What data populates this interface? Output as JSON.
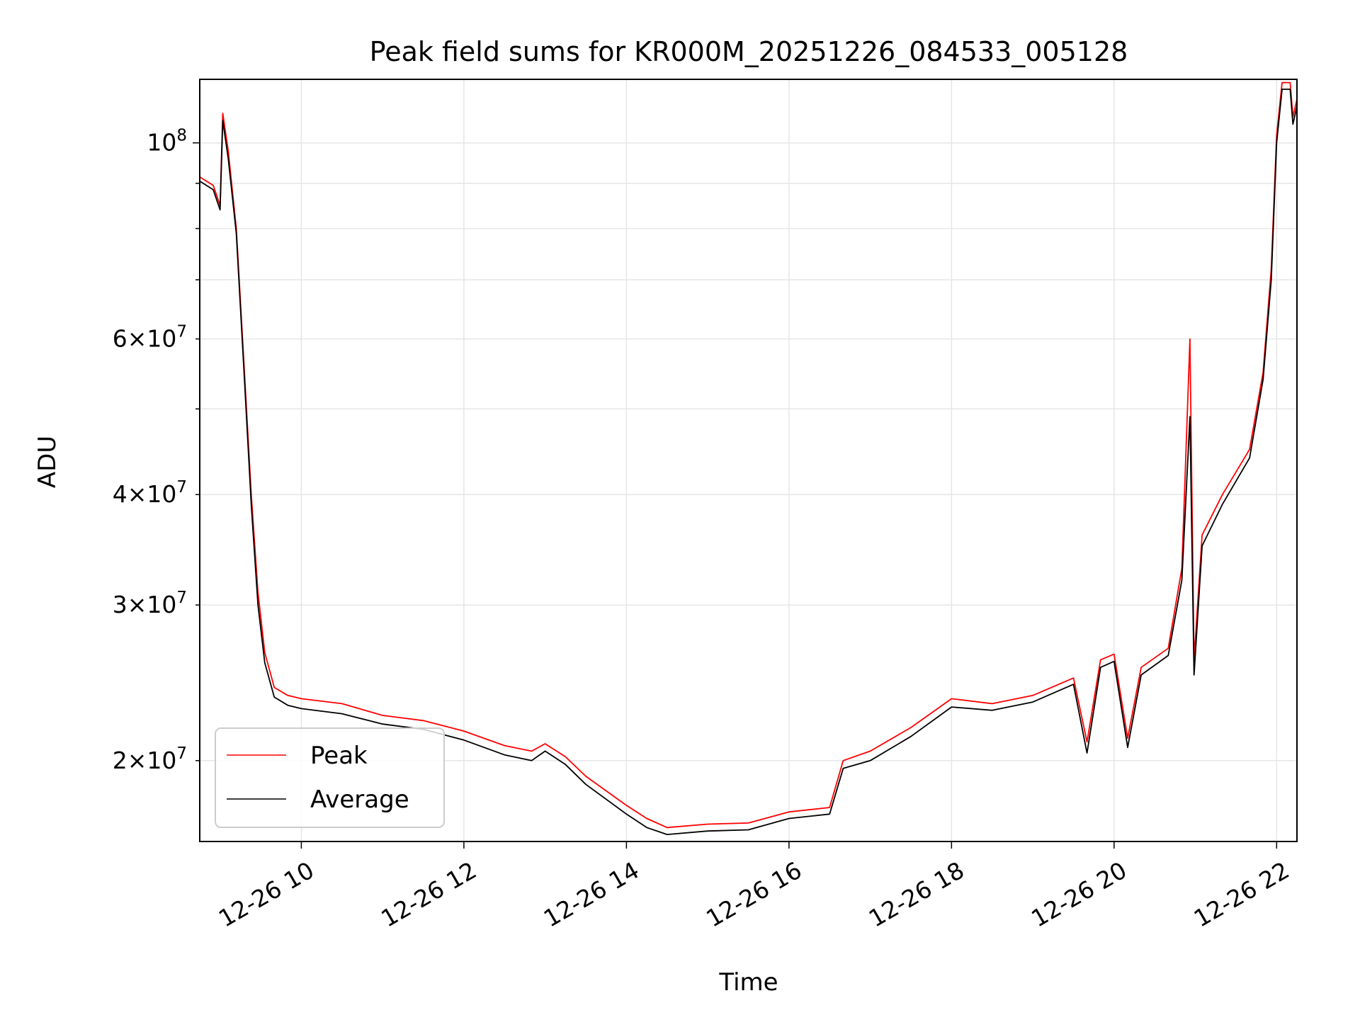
{
  "chart_data": {
    "type": "line",
    "title": "Peak field sums for KR000M_20251226_084533_005128",
    "xlabel": "Time",
    "ylabel": "ADU",
    "yscale": "log",
    "grid": true,
    "legend_placement": "lower-left",
    "xlim": [
      "12-26 08:45",
      "12-26 22:15"
    ],
    "ylim": [
      16200000,
      118000000
    ],
    "x_ticks": [
      {
        "t": "12-26 10:00",
        "label": "12-26 10"
      },
      {
        "t": "12-26 12:00",
        "label": "12-26 12"
      },
      {
        "t": "12-26 14:00",
        "label": "12-26 14"
      },
      {
        "t": "12-26 16:00",
        "label": "12-26 16"
      },
      {
        "t": "12-26 18:00",
        "label": "12-26 18"
      },
      {
        "t": "12-26 20:00",
        "label": "12-26 20"
      },
      {
        "t": "12-26 22:00",
        "label": "12-26 22"
      }
    ],
    "y_major_ticks": [
      {
        "value": 100000000,
        "mantissa": "",
        "base": "10",
        "exp": "8"
      }
    ],
    "y_minor_ticks": [
      {
        "value": 20000000,
        "mantissa": "2",
        "base": "10",
        "exp": "7"
      },
      {
        "value": 30000000,
        "mantissa": "3",
        "base": "10",
        "exp": "7"
      },
      {
        "value": 40000000,
        "mantissa": "4",
        "base": "10",
        "exp": "7"
      },
      {
        "value": 50000000,
        "mantissa": "",
        "base": "",
        "exp": ""
      },
      {
        "value": 60000000,
        "mantissa": "6",
        "base": "10",
        "exp": "7"
      },
      {
        "value": 70000000,
        "mantissa": "",
        "base": "",
        "exp": ""
      },
      {
        "value": 80000000,
        "mantissa": "",
        "base": "",
        "exp": ""
      },
      {
        "value": 90000000,
        "mantissa": "",
        "base": "",
        "exp": ""
      }
    ],
    "series": [
      {
        "name": "Peak",
        "color": "#ff0000",
        "points": [
          [
            "12-26 08:45",
            91500000
          ],
          [
            "12-26 08:55",
            89500000
          ],
          [
            "12-26 09:00",
            85000000
          ],
          [
            "12-26 09:02",
            108000000
          ],
          [
            "12-26 09:06",
            98000000
          ],
          [
            "12-26 09:12",
            80000000
          ],
          [
            "12-26 09:18",
            55000000
          ],
          [
            "12-26 09:23",
            40000000
          ],
          [
            "12-26 09:28",
            31000000
          ],
          [
            "12-26 09:33",
            26500000
          ],
          [
            "12-26 09:40",
            24200000
          ],
          [
            "12-26 09:50",
            23700000
          ],
          [
            "12-26 10:00",
            23500000
          ],
          [
            "12-26 10:30",
            23200000
          ],
          [
            "12-26 11:00",
            22500000
          ],
          [
            "12-26 11:30",
            22200000
          ],
          [
            "12-26 12:00",
            21600000
          ],
          [
            "12-26 12:30",
            20800000
          ],
          [
            "12-26 12:50",
            20500000
          ],
          [
            "12-26 13:00",
            20900000
          ],
          [
            "12-26 13:15",
            20200000
          ],
          [
            "12-26 13:30",
            19200000
          ],
          [
            "12-26 14:00",
            17800000
          ],
          [
            "12-26 14:15",
            17200000
          ],
          [
            "12-26 14:30",
            16800000
          ],
          [
            "12-26 15:00",
            16950000
          ],
          [
            "12-26 15:30",
            17000000
          ],
          [
            "12-26 16:00",
            17500000
          ],
          [
            "12-26 16:30",
            17700000
          ],
          [
            "12-26 16:40",
            20000000
          ],
          [
            "12-26 17:00",
            20500000
          ],
          [
            "12-26 17:30",
            21800000
          ],
          [
            "12-26 18:00",
            23500000
          ],
          [
            "12-26 18:30",
            23200000
          ],
          [
            "12-26 19:00",
            23700000
          ],
          [
            "12-26 19:30",
            24800000
          ],
          [
            "12-26 19:40",
            21000000
          ],
          [
            "12-26 19:50",
            26000000
          ],
          [
            "12-26 20:00",
            26400000
          ],
          [
            "12-26 20:10",
            21200000
          ],
          [
            "12-26 20:20",
            25500000
          ],
          [
            "12-26 20:40",
            26800000
          ],
          [
            "12-26 20:50",
            33000000
          ],
          [
            "12-26 20:56",
            60000000
          ],
          [
            "12-26 20:59",
            26000000
          ],
          [
            "12-26 21:05",
            36000000
          ],
          [
            "12-26 21:20",
            40000000
          ],
          [
            "12-26 21:40",
            45000000
          ],
          [
            "12-26 21:50",
            55000000
          ],
          [
            "12-26 21:56",
            72000000
          ],
          [
            "12-26 22:00",
            102000000
          ],
          [
            "12-26 22:04",
            117000000
          ],
          [
            "12-26 22:10",
            117000000
          ],
          [
            "12-26 22:12",
            107000000
          ],
          [
            "12-26 22:15",
            112000000
          ]
        ]
      },
      {
        "name": "Average",
        "color": "#000000",
        "points": [
          [
            "12-26 08:45",
            90500000
          ],
          [
            "12-26 08:55",
            88500000
          ],
          [
            "12-26 09:00",
            84000000
          ],
          [
            "12-26 09:02",
            106000000
          ],
          [
            "12-26 09:06",
            96000000
          ],
          [
            "12-26 09:12",
            79000000
          ],
          [
            "12-26 09:18",
            54000000
          ],
          [
            "12-26 09:23",
            39000000
          ],
          [
            "12-26 09:28",
            30000000
          ],
          [
            "12-26 09:33",
            25800000
          ],
          [
            "12-26 09:40",
            23600000
          ],
          [
            "12-26 09:50",
            23100000
          ],
          [
            "12-26 10:00",
            22900000
          ],
          [
            "12-26 10:30",
            22600000
          ],
          [
            "12-26 11:00",
            22000000
          ],
          [
            "12-26 11:30",
            21700000
          ],
          [
            "12-26 12:00",
            21100000
          ],
          [
            "12-26 12:30",
            20300000
          ],
          [
            "12-26 12:50",
            20000000
          ],
          [
            "12-26 13:00",
            20500000
          ],
          [
            "12-26 13:15",
            19800000
          ],
          [
            "12-26 13:30",
            18800000
          ],
          [
            "12-26 14:00",
            17400000
          ],
          [
            "12-26 14:15",
            16800000
          ],
          [
            "12-26 14:30",
            16500000
          ],
          [
            "12-26 15:00",
            16650000
          ],
          [
            "12-26 15:30",
            16700000
          ],
          [
            "12-26 16:00",
            17200000
          ],
          [
            "12-26 16:30",
            17400000
          ],
          [
            "12-26 16:40",
            19600000
          ],
          [
            "12-26 17:00",
            20000000
          ],
          [
            "12-26 17:30",
            21300000
          ],
          [
            "12-26 18:00",
            23000000
          ],
          [
            "12-26 18:30",
            22800000
          ],
          [
            "12-26 19:00",
            23300000
          ],
          [
            "12-26 19:30",
            24400000
          ],
          [
            "12-26 19:40",
            20400000
          ],
          [
            "12-26 19:50",
            25500000
          ],
          [
            "12-26 20:00",
            25900000
          ],
          [
            "12-26 20:10",
            20700000
          ],
          [
            "12-26 20:20",
            25000000
          ],
          [
            "12-26 20:40",
            26300000
          ],
          [
            "12-26 20:50",
            32000000
          ],
          [
            "12-26 20:56",
            49000000
          ],
          [
            "12-26 20:59",
            25000000
          ],
          [
            "12-26 21:05",
            35000000
          ],
          [
            "12-26 21:20",
            39000000
          ],
          [
            "12-26 21:40",
            44000000
          ],
          [
            "12-26 21:50",
            54000000
          ],
          [
            "12-26 21:56",
            70000000
          ],
          [
            "12-26 22:00",
            100000000
          ],
          [
            "12-26 22:04",
            115000000
          ],
          [
            "12-26 22:10",
            115000000
          ],
          [
            "12-26 22:12",
            105000000
          ],
          [
            "12-26 22:15",
            110000000
          ]
        ]
      }
    ]
  }
}
